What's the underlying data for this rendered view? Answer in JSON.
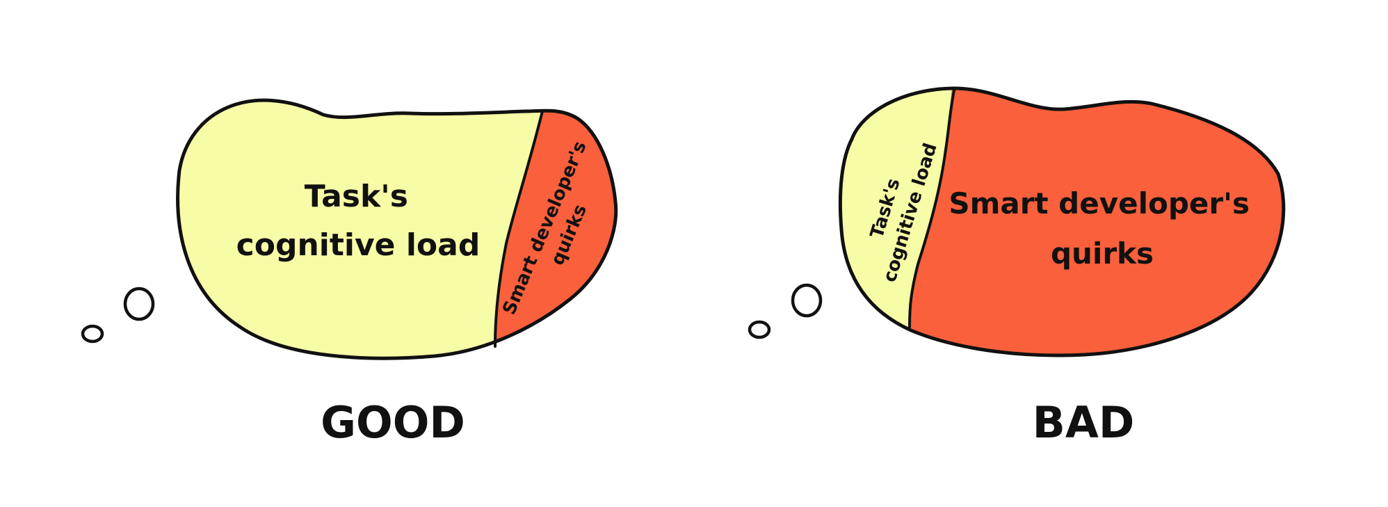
{
  "colors": {
    "task_load": "#f7fca6",
    "quirks": "#fa603c",
    "outline": "#111111",
    "background": "#ffffff"
  },
  "good": {
    "caption": "GOOD",
    "task_label_line1": "Task's",
    "task_label_line2": "cognitive load",
    "quirks_label_line1": "Smart developer's",
    "quirks_label_line2": "quirks"
  },
  "bad": {
    "caption": "BAD",
    "task_label_line1": "Task's",
    "task_label_line2": "cognitive load",
    "quirks_label_line1": "Smart developer's",
    "quirks_label_line2": "quirks"
  }
}
